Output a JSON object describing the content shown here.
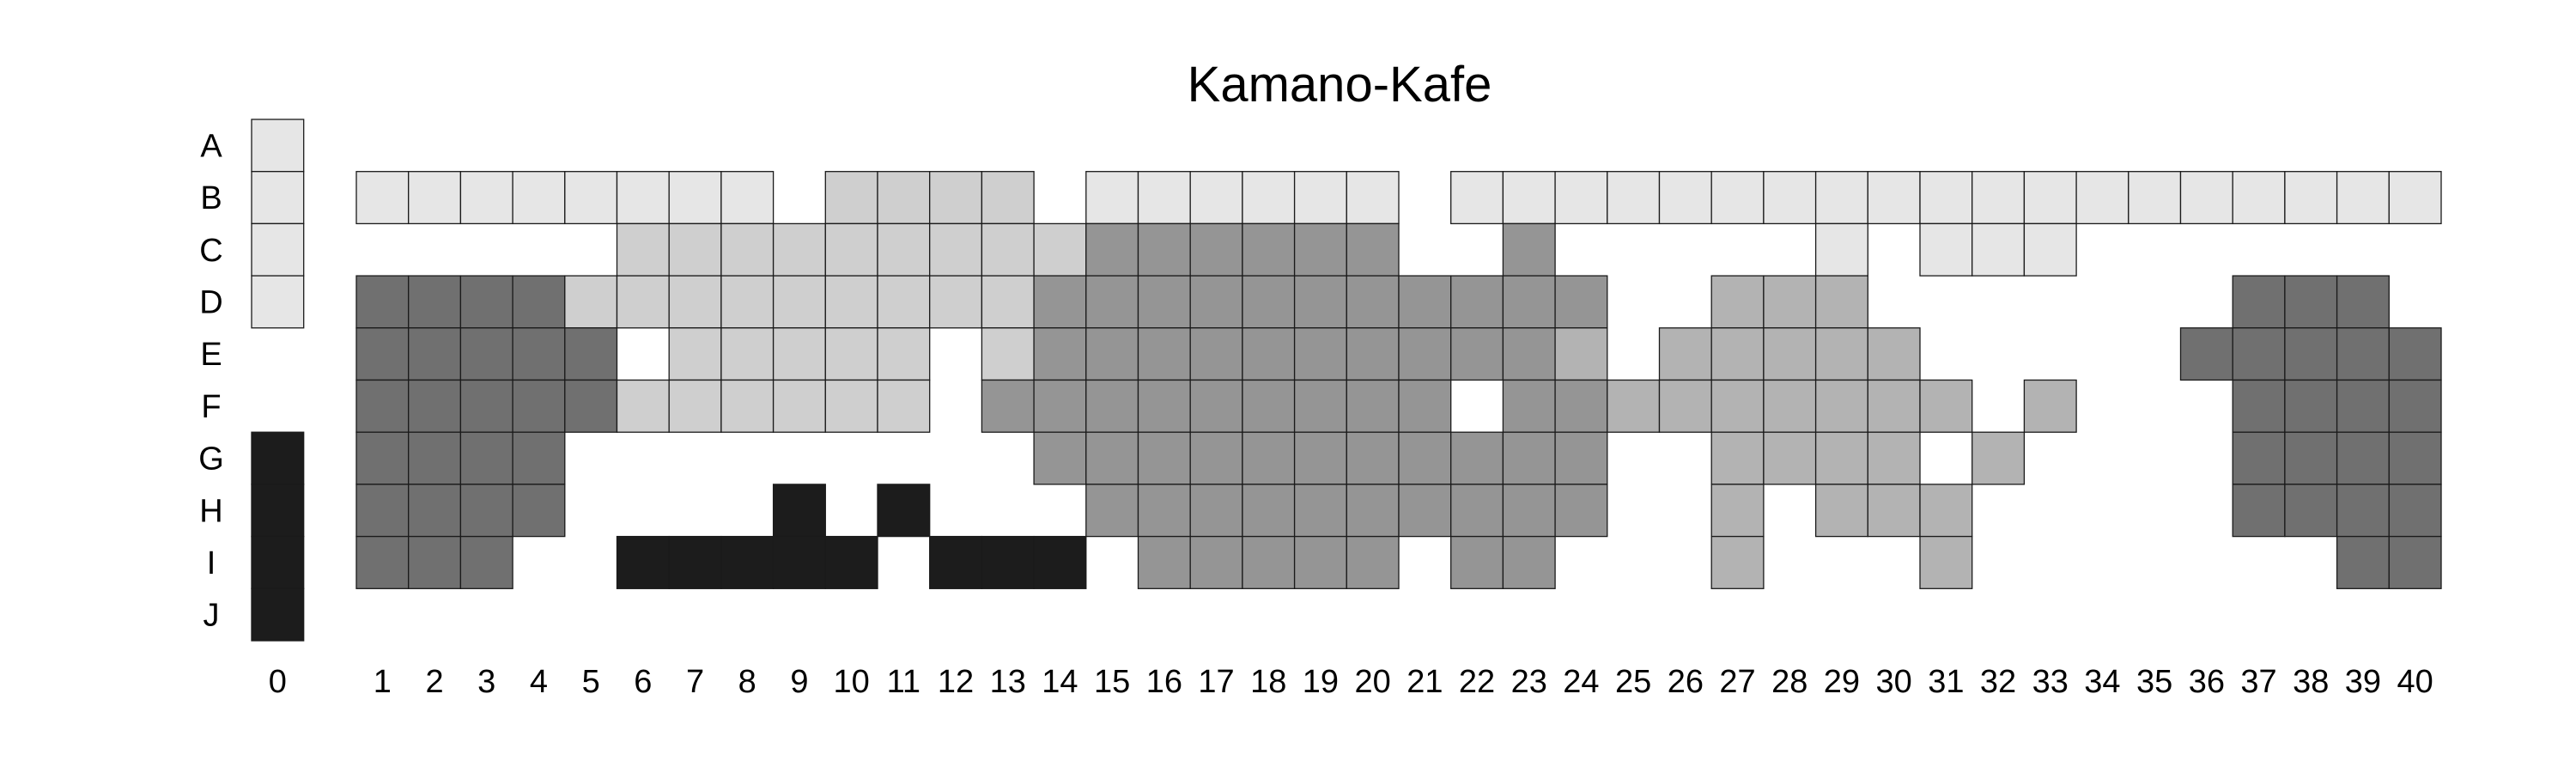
{
  "chart_data": {
    "type": "heatmap",
    "title": "Kamano-Kafe",
    "rows": [
      "A",
      "B",
      "C",
      "D",
      "E",
      "F",
      "G",
      "H",
      "I",
      "J"
    ],
    "columns": [
      "0",
      "1",
      "2",
      "3",
      "4",
      "5",
      "6",
      "7",
      "8",
      "9",
      "10",
      "11",
      "12",
      "13",
      "14",
      "15",
      "16",
      "17",
      "18",
      "19",
      "20",
      "21",
      "22",
      "23",
      "24",
      "25",
      "26",
      "27",
      "28",
      "29",
      "30",
      "31",
      "32",
      "33",
      "34",
      "35",
      "36",
      "37",
      "38",
      "39",
      "40"
    ],
    "value_scale": {
      "1": "#e6e6e6",
      "2": "#cfcfcf",
      "3": "#959595",
      "4": "#b3b3b3",
      "5": "#707070",
      "6": "#1c1c1c"
    },
    "grid": "0 = empty; 1..6 = shade index from lightest to darkest group",
    "values": [
      [
        1,
        0,
        0,
        0,
        0,
        0,
        0,
        0,
        0,
        0,
        0,
        0,
        0,
        0,
        0,
        0,
        0,
        0,
        0,
        0,
        0,
        0,
        0,
        0,
        0,
        0,
        0,
        0,
        0,
        0,
        0,
        0,
        0,
        0,
        0,
        0,
        0,
        0,
        0,
        0,
        0
      ],
      [
        1,
        1,
        1,
        1,
        1,
        1,
        1,
        1,
        1,
        0,
        2,
        2,
        2,
        2,
        0,
        1,
        1,
        1,
        1,
        1,
        1,
        0,
        1,
        1,
        1,
        1,
        1,
        1,
        1,
        1,
        1,
        1,
        1,
        1,
        1,
        1,
        1,
        1,
        1,
        1,
        1
      ],
      [
        1,
        0,
        0,
        0,
        0,
        0,
        2,
        2,
        2,
        2,
        2,
        2,
        2,
        2,
        2,
        3,
        3,
        3,
        3,
        3,
        3,
        0,
        0,
        3,
        0,
        0,
        0,
        0,
        0,
        1,
        0,
        1,
        1,
        1,
        0,
        0,
        0,
        0,
        0,
        0,
        0
      ],
      [
        1,
        5,
        5,
        5,
        5,
        2,
        2,
        2,
        2,
        2,
        2,
        2,
        2,
        2,
        3,
        3,
        3,
        3,
        3,
        3,
        3,
        3,
        3,
        3,
        3,
        0,
        0,
        4,
        4,
        4,
        0,
        0,
        0,
        0,
        0,
        0,
        0,
        5,
        5,
        5,
        0
      ],
      [
        0,
        5,
        5,
        5,
        5,
        5,
        0,
        2,
        2,
        2,
        2,
        2,
        0,
        2,
        3,
        3,
        3,
        3,
        3,
        3,
        3,
        3,
        3,
        3,
        4,
        0,
        4,
        4,
        4,
        4,
        4,
        0,
        0,
        0,
        0,
        0,
        5,
        5,
        5,
        5,
        5
      ],
      [
        0,
        5,
        5,
        5,
        5,
        5,
        2,
        2,
        2,
        2,
        2,
        2,
        0,
        3,
        3,
        3,
        3,
        3,
        3,
        3,
        3,
        3,
        0,
        3,
        3,
        4,
        4,
        4,
        4,
        4,
        4,
        4,
        0,
        4,
        0,
        0,
        0,
        5,
        5,
        5,
        5
      ],
      [
        6,
        5,
        5,
        5,
        5,
        0,
        0,
        0,
        0,
        0,
        0,
        0,
        0,
        0,
        3,
        3,
        3,
        3,
        3,
        3,
        3,
        3,
        3,
        3,
        3,
        0,
        0,
        4,
        4,
        4,
        4,
        0,
        4,
        0,
        0,
        0,
        0,
        5,
        5,
        5,
        5
      ],
      [
        6,
        5,
        5,
        5,
        5,
        0,
        0,
        0,
        0,
        6,
        0,
        6,
        0,
        0,
        0,
        3,
        3,
        3,
        3,
        3,
        3,
        3,
        3,
        3,
        3,
        0,
        0,
        4,
        0,
        4,
        4,
        4,
        0,
        0,
        0,
        0,
        0,
        5,
        5,
        5,
        5
      ],
      [
        6,
        5,
        5,
        5,
        0,
        0,
        6,
        6,
        6,
        6,
        6,
        0,
        6,
        6,
        6,
        0,
        3,
        3,
        3,
        3,
        3,
        0,
        3,
        3,
        0,
        0,
        0,
        4,
        0,
        0,
        0,
        4,
        0,
        0,
        0,
        0,
        0,
        0,
        0,
        5,
        5
      ],
      [
        6,
        0,
        0,
        0,
        0,
        0,
        0,
        0,
        0,
        0,
        0,
        0,
        0,
        0,
        0,
        0,
        0,
        0,
        0,
        0,
        0,
        0,
        0,
        0,
        0,
        0,
        0,
        0,
        0,
        0,
        0,
        0,
        0,
        0,
        0,
        0,
        0,
        0,
        0,
        0,
        0
      ]
    ]
  }
}
